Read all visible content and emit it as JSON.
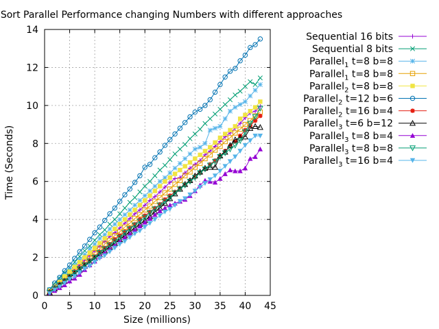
{
  "chart_data": {
    "type": "line",
    "title": "Sort Parallel Performance changing Numbers with different approaches",
    "xlabel": "Size (millions)",
    "ylabel": "Time (Seconds)",
    "xlim": [
      0,
      45
    ],
    "ylim": [
      0,
      14
    ],
    "xticks": [
      0,
      5,
      10,
      15,
      20,
      25,
      30,
      35,
      40,
      45
    ],
    "yticks": [
      0,
      2,
      4,
      6,
      8,
      10,
      12,
      14
    ],
    "grid": true,
    "legend_position": "top-right",
    "x": [
      1,
      2,
      3,
      4,
      5,
      6,
      7,
      8,
      9,
      10,
      11,
      12,
      13,
      14,
      15,
      16,
      17,
      18,
      19,
      20,
      21,
      22,
      23,
      24,
      25,
      26,
      27,
      28,
      29,
      30,
      31,
      32,
      33,
      34,
      35,
      36,
      37,
      38,
      39,
      40,
      41,
      42,
      43
    ],
    "series": [
      {
        "name": "Sequential 16 bits",
        "label_base": "Sequential 16 bits",
        "label_sub": "",
        "label_rest": "",
        "color": "#9400d3",
        "marker": "plus",
        "values": [
          0.2,
          0.45,
          0.7,
          0.9,
          1.15,
          1.4,
          1.6,
          1.85,
          2.1,
          2.35,
          2.6,
          2.85,
          3.1,
          3.3,
          3.55,
          3.8,
          4.05,
          4.3,
          4.5,
          4.75,
          5.0,
          5.2,
          5.45,
          5.7,
          5.95,
          6.15,
          6.2,
          6.45,
          6.7,
          6.9,
          7.1,
          7.4,
          7.6,
          7.85,
          8.1,
          8.35,
          8.55,
          8.8,
          9.05,
          9.35,
          9.6,
          9.7,
          9.95
        ]
      },
      {
        "name": "Sequential 8 bits",
        "label_base": "Sequential 8 bits",
        "label_sub": "",
        "label_rest": "",
        "color": "#009e73",
        "marker": "x",
        "values": [
          0.3,
          0.6,
          0.9,
          1.2,
          1.45,
          1.75,
          2.05,
          2.35,
          2.6,
          2.9,
          3.2,
          3.45,
          3.75,
          4.0,
          4.3,
          4.6,
          4.9,
          5.15,
          5.45,
          5.75,
          6.0,
          6.3,
          6.6,
          6.85,
          7.15,
          7.45,
          7.7,
          7.95,
          8.25,
          8.5,
          8.75,
          9.05,
          9.3,
          9.55,
          9.8,
          10.05,
          10.3,
          10.55,
          10.75,
          11.0,
          11.25,
          11.1,
          11.45
        ]
      },
      {
        "name": "Parallel1 t=8 b=8",
        "label_base": "Parallel",
        "label_sub": "1",
        "label_rest": " t=8 b=8",
        "color": "#56b4e9",
        "marker": "star",
        "values": [
          0.25,
          0.5,
          0.8,
          1.05,
          1.35,
          1.6,
          1.9,
          2.15,
          2.45,
          2.7,
          3.0,
          3.2,
          3.5,
          3.75,
          4.0,
          4.25,
          4.5,
          4.75,
          5.0,
          5.25,
          5.5,
          5.75,
          6.0,
          6.2,
          6.45,
          6.7,
          6.95,
          7.2,
          7.45,
          7.7,
          7.8,
          8.0,
          8.7,
          8.8,
          8.9,
          9.3,
          9.7,
          9.9,
          10.05,
          10.2,
          10.5,
          10.8,
          11.1
        ]
      },
      {
        "name": "Parallel1 t=8 b=8",
        "label_base": "Parallel",
        "label_sub": "1",
        "label_rest": " t=8 b=8",
        "color": "#e69f00",
        "marker": "square-open",
        "values": [
          0.2,
          0.45,
          0.65,
          0.9,
          1.1,
          1.35,
          1.55,
          1.8,
          2.0,
          2.25,
          2.45,
          2.7,
          2.9,
          3.15,
          3.35,
          3.6,
          3.8,
          4.05,
          4.25,
          4.5,
          4.7,
          4.95,
          5.15,
          5.4,
          5.6,
          5.85,
          6.05,
          6.3,
          6.5,
          6.75,
          6.95,
          7.2,
          7.4,
          7.65,
          7.85,
          8.1,
          8.3,
          8.55,
          8.75,
          9.0,
          9.2,
          9.45,
          9.65
        ]
      },
      {
        "name": "Parallel2 t=8 b=8",
        "label_base": "Parallel",
        "label_sub": "2",
        "label_rest": " t=8 b=8",
        "color": "#f0e442",
        "marker": "square",
        "values": [
          0.25,
          0.5,
          0.75,
          1.0,
          1.25,
          1.5,
          1.75,
          2.0,
          2.25,
          2.5,
          2.75,
          3.0,
          3.25,
          3.5,
          3.75,
          4.0,
          4.25,
          4.5,
          4.75,
          5.0,
          5.25,
          5.5,
          5.75,
          6.0,
          6.2,
          6.4,
          6.6,
          6.8,
          7.0,
          7.2,
          7.4,
          7.6,
          7.8,
          8.05,
          8.3,
          8.5,
          8.7,
          8.9,
          9.3,
          9.5,
          9.7,
          9.9,
          10.2
        ]
      },
      {
        "name": "Parallel2 t=12 b=6",
        "label_base": "Parallel",
        "label_sub": "2",
        "label_rest": " t=12 b=6",
        "color": "#0072b2",
        "marker": "circle-open",
        "values": [
          0.3,
          0.65,
          0.95,
          1.3,
          1.6,
          1.95,
          2.3,
          2.6,
          2.95,
          3.3,
          3.6,
          3.95,
          4.3,
          4.6,
          4.95,
          5.3,
          5.6,
          5.95,
          6.3,
          6.75,
          6.9,
          7.25,
          7.55,
          7.9,
          8.2,
          8.5,
          8.8,
          9.1,
          9.4,
          9.65,
          9.8,
          10.0,
          10.3,
          10.7,
          11.1,
          11.5,
          11.8,
          11.95,
          12.35,
          12.65,
          13.05,
          13.2,
          13.5
        ]
      },
      {
        "name": "Parallel2 t=16 b=4",
        "label_base": "Parallel",
        "label_sub": "2",
        "label_rest": " t=16 b=4",
        "color": "#e51e10",
        "marker": "asterisk",
        "values": [
          0.2,
          0.4,
          0.6,
          0.8,
          1.0,
          1.25,
          1.45,
          1.65,
          1.85,
          2.05,
          2.3,
          2.5,
          2.7,
          2.95,
          3.15,
          3.35,
          3.55,
          3.75,
          4.0,
          4.2,
          4.4,
          4.6,
          4.8,
          5.05,
          5.25,
          5.45,
          5.65,
          5.85,
          6.05,
          6.25,
          6.45,
          6.65,
          6.9,
          7.1,
          7.35,
          7.6,
          7.85,
          8.1,
          8.4,
          8.7,
          8.95,
          9.2,
          9.45
        ]
      },
      {
        "name": "Parallel3 t=6 b=12",
        "label_base": "Parallel",
        "label_sub": "3",
        "label_rest": " t=6 b=12",
        "color": "#000000",
        "marker": "triangle-open",
        "values": [
          0.15,
          0.35,
          0.55,
          0.75,
          0.95,
          1.15,
          1.35,
          1.55,
          1.75,
          1.95,
          2.15,
          2.35,
          2.55,
          2.75,
          2.95,
          3.15,
          3.35,
          3.55,
          3.75,
          3.95,
          4.15,
          4.4,
          4.6,
          4.85,
          5.1,
          5.35,
          5.6,
          5.85,
          6.05,
          6.3,
          6.5,
          6.7,
          6.75,
          6.75,
          7.35,
          7.55,
          7.9,
          8.2,
          8.3,
          8.35,
          8.8,
          8.9,
          8.85
        ]
      },
      {
        "name": "Parallel3 t=8 b=4",
        "label_base": "Parallel",
        "label_sub": "3",
        "label_rest": " t=8 b=4",
        "color": "#9400d3",
        "marker": "triangle",
        "values": [
          0.1,
          0.25,
          0.4,
          0.55,
          0.75,
          0.9,
          1.1,
          1.35,
          1.6,
          1.8,
          2.05,
          2.25,
          2.45,
          2.65,
          2.85,
          3.05,
          3.25,
          3.45,
          3.65,
          3.85,
          4.05,
          4.25,
          4.45,
          4.6,
          4.75,
          4.85,
          4.95,
          5.05,
          5.25,
          5.5,
          5.8,
          6.05,
          6.0,
          5.95,
          6.15,
          6.4,
          6.6,
          6.55,
          6.55,
          6.7,
          7.2,
          7.3,
          7.7
        ]
      },
      {
        "name": "Parallel3 t=8 b=8",
        "label_base": "Parallel",
        "label_sub": "3",
        "label_rest": " t=8 b=8",
        "color": "#009e73",
        "marker": "triangle-down-open",
        "values": [
          0.15,
          0.35,
          0.55,
          0.75,
          1.0,
          1.2,
          1.4,
          1.6,
          1.8,
          2.0,
          2.25,
          2.45,
          2.65,
          2.85,
          3.05,
          3.3,
          3.5,
          3.7,
          3.9,
          4.1,
          4.35,
          4.55,
          4.75,
          4.95,
          5.15,
          5.4,
          5.6,
          5.8,
          6.0,
          6.2,
          6.45,
          6.65,
          6.85,
          7.05,
          7.3,
          7.5,
          7.7,
          7.9,
          8.15,
          8.6,
          9.05,
          9.4,
          9.85
        ]
      },
      {
        "name": "Parallel3 t=16 b=4",
        "label_base": "Parallel",
        "label_sub": "3",
        "label_rest": " t=16 b=4",
        "color": "#56b4e9",
        "marker": "triangle-down",
        "values": [
          0.1,
          0.3,
          0.45,
          0.65,
          0.85,
          1.0,
          1.2,
          1.4,
          1.55,
          1.75,
          1.95,
          2.1,
          2.3,
          2.5,
          2.7,
          2.85,
          3.05,
          3.25,
          3.4,
          3.6,
          3.8,
          4.0,
          4.2,
          4.4,
          4.55,
          4.75,
          4.95,
          5.1,
          5.3,
          5.5,
          5.7,
          5.9,
          6.1,
          6.3,
          6.55,
          6.8,
          7.05,
          7.3,
          7.6,
          7.9,
          8.15,
          8.4,
          8.4
        ]
      }
    ]
  }
}
